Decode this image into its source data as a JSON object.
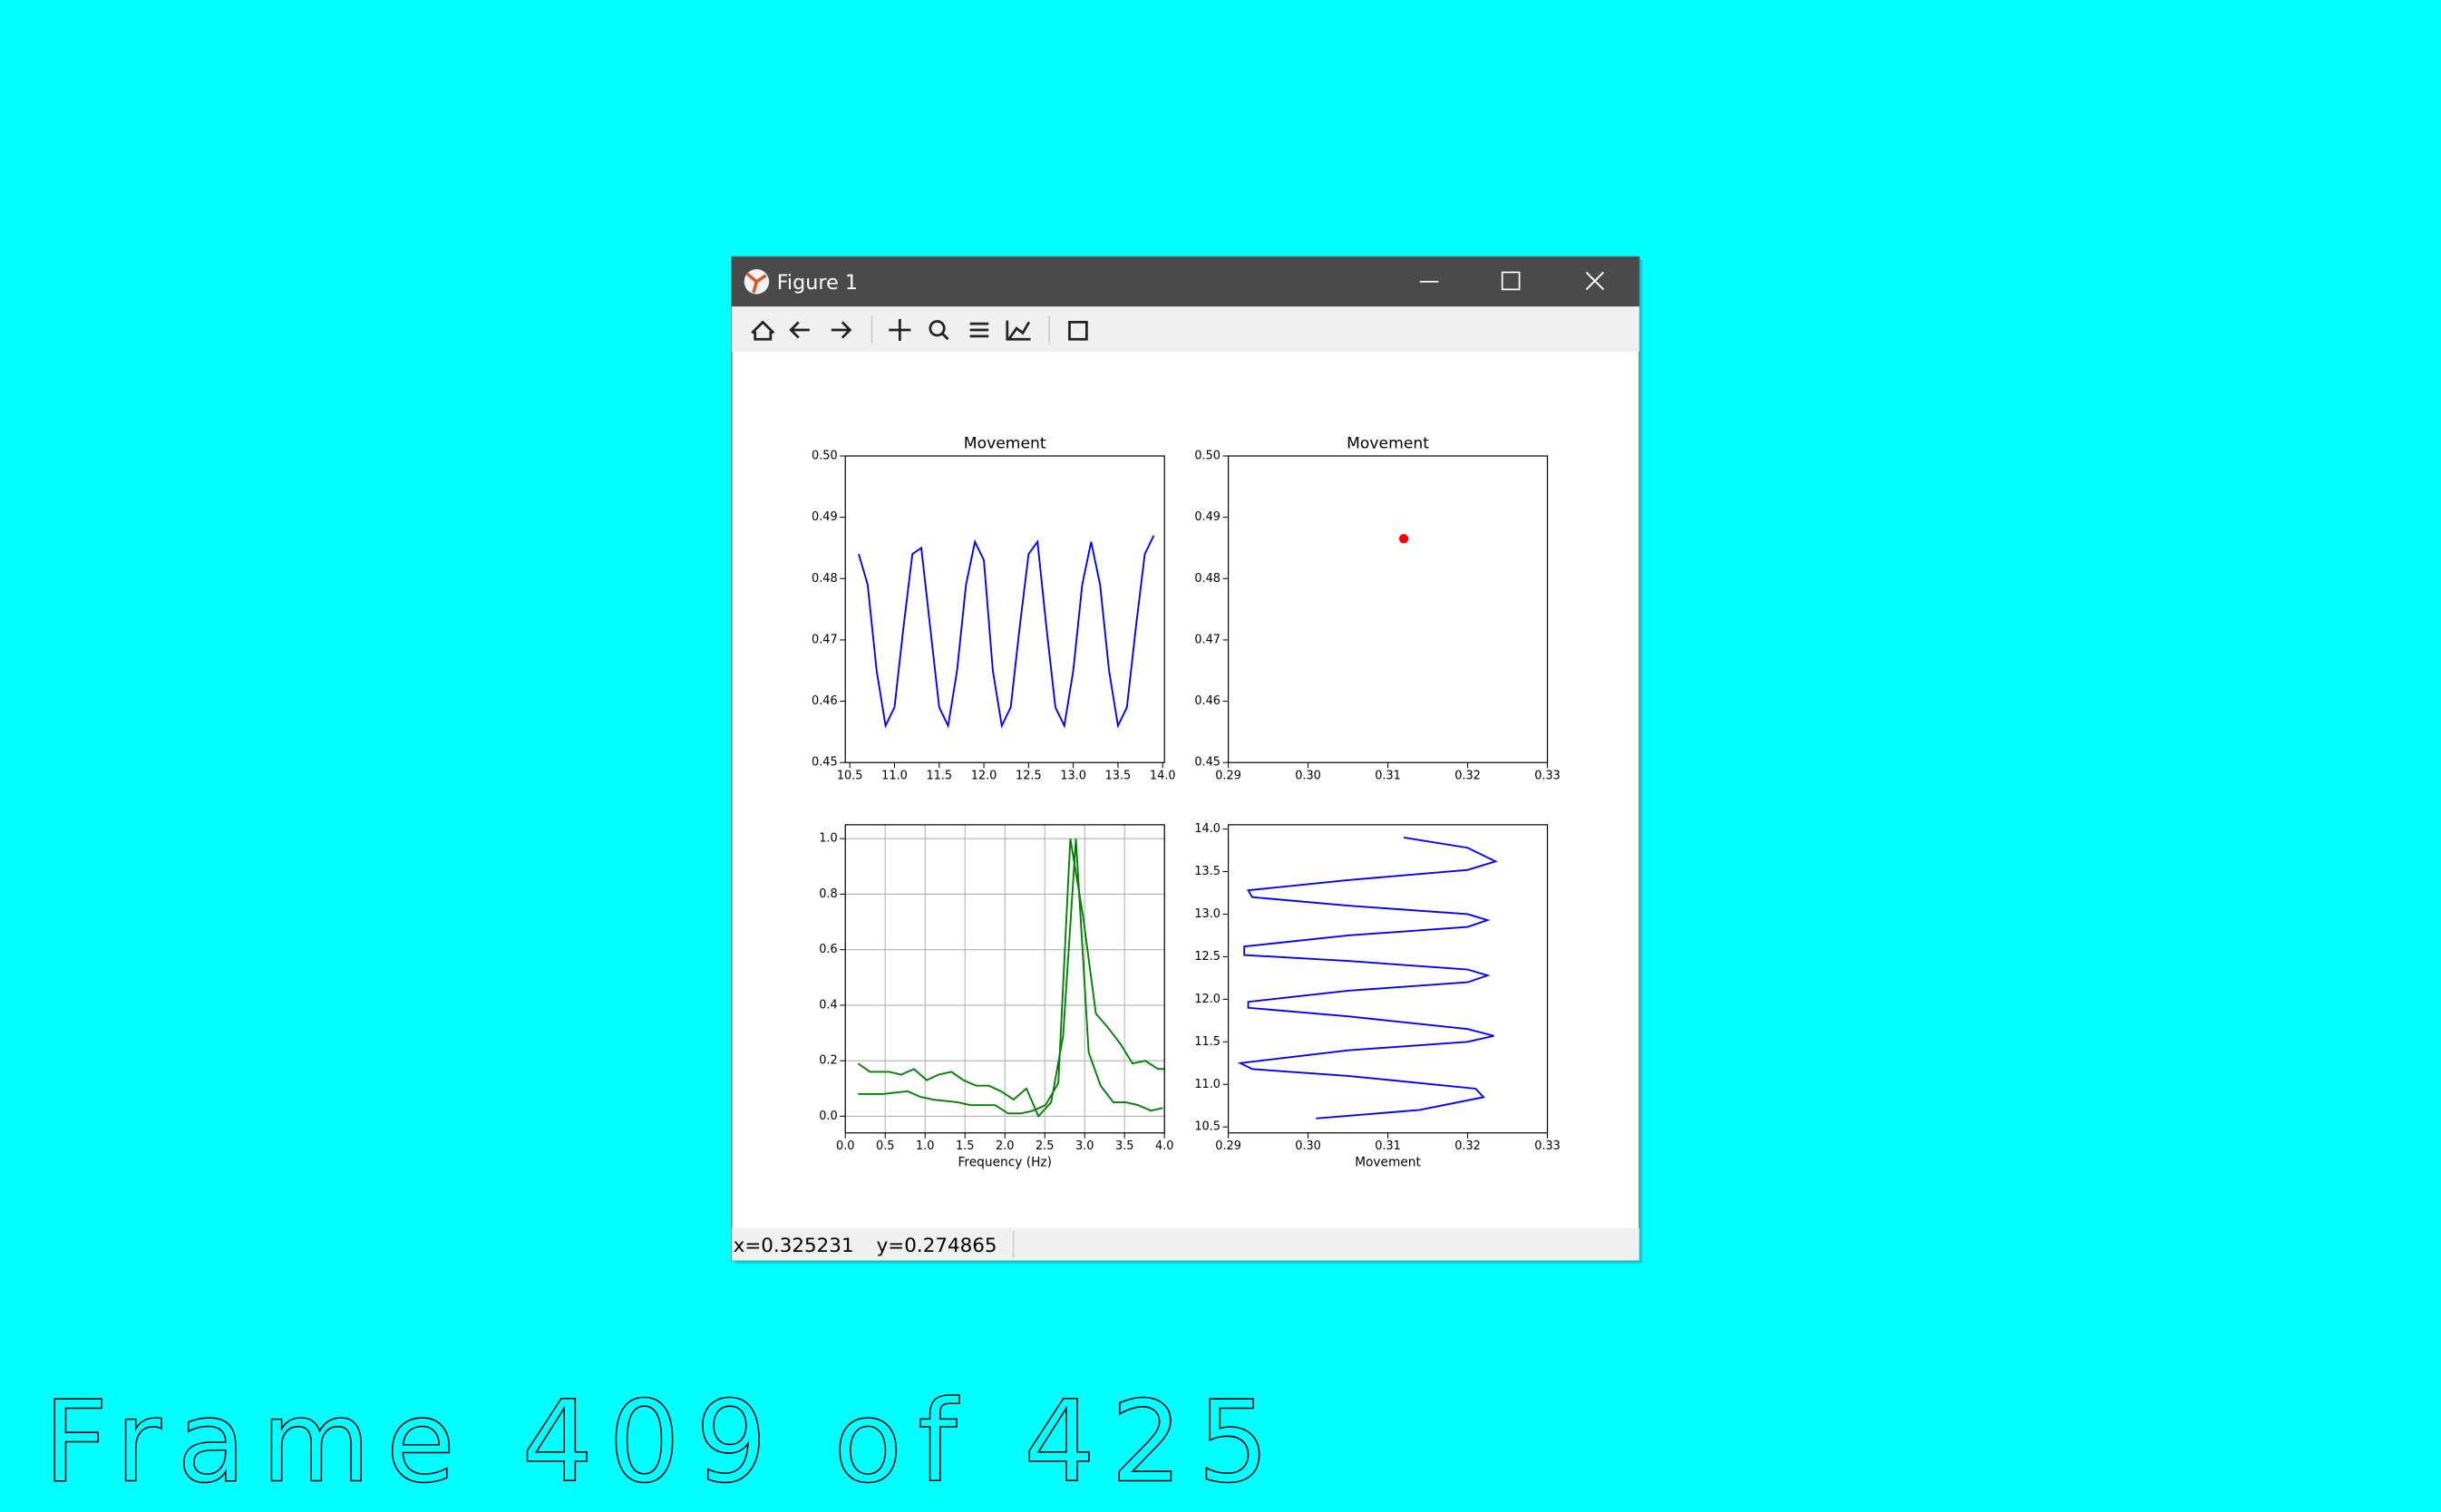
{
  "window": {
    "title": "Figure 1"
  },
  "status": {
    "x_text": "x=0.325231",
    "y_text": "y=0.274865"
  },
  "overlay": {
    "frame_text": "Frame 409 of 425"
  },
  "chart_data": [
    {
      "type": "line",
      "title": "Movement",
      "color": "#0000ff",
      "x": [
        10.6,
        10.7,
        10.8,
        10.9,
        11.0,
        11.1,
        11.2,
        11.3,
        11.4,
        11.5,
        11.6,
        11.7,
        11.8,
        11.9,
        12.0,
        12.1,
        12.2,
        12.3,
        12.4,
        12.5,
        12.6,
        12.7,
        12.8,
        12.9,
        13.0,
        13.1,
        13.2,
        13.3,
        13.4,
        13.5,
        13.6,
        13.7,
        13.8,
        13.9
      ],
      "values": [
        0.484,
        0.479,
        0.465,
        0.456,
        0.459,
        0.472,
        0.484,
        0.485,
        0.472,
        0.459,
        0.456,
        0.465,
        0.479,
        0.486,
        0.483,
        0.465,
        0.456,
        0.459,
        0.472,
        0.484,
        0.486,
        0.472,
        0.459,
        0.456,
        0.465,
        0.479,
        0.486,
        0.479,
        0.465,
        0.456,
        0.459,
        0.472,
        0.484,
        0.487
      ],
      "xlim": [
        10.45,
        14.02
      ],
      "ylim": [
        0.45,
        0.5
      ],
      "xticks": [
        10.5,
        {
          "value": 11.0,
          "label": "11.0"
        },
        11.5,
        {
          "value": 12.0,
          "label": "12.0"
        },
        12.5,
        {
          "value": 13.0,
          "label": "13.0"
        },
        13.5,
        {
          "value": 14.0,
          "label": "14.0"
        }
      ],
      "yticks": [
        0.45,
        0.46,
        0.47,
        0.48,
        0.49,
        {
          "value": 0.5,
          "label": "0.50"
        }
      ],
      "grid": false
    },
    {
      "type": "scatter",
      "title": "Movement",
      "color": "#ff0000",
      "x": [
        0.312
      ],
      "values": [
        0.4865
      ],
      "xlim": [
        0.29,
        0.33
      ],
      "ylim": [
        0.45,
        0.5
      ],
      "xticks": [
        0.29,
        {
          "value": 0.3,
          "label": "0.30"
        },
        0.31,
        0.32,
        0.33
      ],
      "yticks": [
        0.45,
        0.46,
        0.47,
        0.48,
        0.49,
        {
          "value": 0.5,
          "label": "0.50"
        }
      ],
      "grid": false
    },
    {
      "type": "line",
      "xlabel": "Frequency (Hz)",
      "series": [
        {
          "color": "#008000",
          "x": [
            0.16,
            0.31,
            0.55,
            0.7,
            0.86,
            1.02,
            1.17,
            1.33,
            1.48,
            1.64,
            1.8,
            1.95,
            2.11,
            2.27,
            2.42,
            2.58,
            2.73,
            2.89,
            3.05,
            3.2,
            3.36,
            3.52,
            3.67,
            3.83,
            3.98
          ],
          "values": [
            0.19,
            0.16,
            0.16,
            0.15,
            0.17,
            0.13,
            0.15,
            0.16,
            0.13,
            0.11,
            0.11,
            0.09,
            0.06,
            0.1,
            0.0,
            0.05,
            0.29,
            1.0,
            0.23,
            0.11,
            0.05,
            0.05,
            0.04,
            0.02,
            0.03
          ]
        },
        {
          "color": "#008000",
          "x": [
            0.16,
            0.47,
            0.78,
            0.94,
            1.1,
            1.41,
            1.57,
            1.88,
            2.04,
            2.2,
            2.35,
            2.51,
            2.67,
            2.82,
            2.98,
            3.14,
            3.29,
            3.45,
            3.6,
            3.76,
            3.92,
            4.0
          ],
          "values": [
            0.08,
            0.08,
            0.09,
            0.07,
            0.06,
            0.05,
            0.04,
            0.04,
            0.01,
            0.01,
            0.02,
            0.04,
            0.12,
            1.0,
            0.72,
            0.37,
            0.32,
            0.26,
            0.19,
            0.2,
            0.17,
            0.17
          ]
        }
      ],
      "xlim": [
        0,
        4
      ],
      "ylim": [
        -0.06,
        1.05
      ],
      "xticks": [
        {
          "value": 0,
          "label": "0.0"
        },
        0.5,
        {
          "value": 1,
          "label": "1.0"
        },
        1.5,
        {
          "value": 2,
          "label": "2.0"
        },
        2.5,
        {
          "value": 3,
          "label": "3.0"
        },
        3.5,
        {
          "value": 4,
          "label": "4.0"
        }
      ],
      "yticks": [
        {
          "value": 0,
          "label": "0.0"
        },
        0.2,
        0.4,
        0.6,
        0.8,
        {
          "value": 1,
          "label": "1.0"
        }
      ],
      "grid": true
    },
    {
      "type": "line",
      "xlabel": "Movement",
      "color": "#0000ff",
      "x": [
        0.301,
        0.314,
        0.322,
        0.321,
        0.305,
        0.293,
        0.2915,
        0.305,
        0.32,
        0.3233,
        0.32,
        0.305,
        0.2925,
        0.2925,
        0.305,
        0.32,
        0.3225,
        0.32,
        0.305,
        0.292,
        0.292,
        0.305,
        0.32,
        0.3225,
        0.32,
        0.305,
        0.293,
        0.2925,
        0.305,
        0.32,
        0.3235,
        0.32,
        0.312
      ],
      "values": [
        10.6,
        10.7,
        10.85,
        10.95,
        11.1,
        11.18,
        11.25,
        11.4,
        11.5,
        11.57,
        11.65,
        11.8,
        11.9,
        11.97,
        12.1,
        12.2,
        12.28,
        12.35,
        12.45,
        12.52,
        12.62,
        12.75,
        12.85,
        12.93,
        13.0,
        13.1,
        13.2,
        13.28,
        13.4,
        13.52,
        13.62,
        13.78,
        13.9
      ],
      "xlim": [
        0.29,
        0.33
      ],
      "ylim": [
        10.43,
        14.05
      ],
      "xticks": [
        0.29,
        {
          "value": 0.3,
          "label": "0.30"
        },
        0.31,
        0.32,
        0.33
      ],
      "yticks": [
        10.5,
        {
          "value": 11.0,
          "label": "11.0"
        },
        11.5,
        {
          "value": 12.0,
          "label": "12.0"
        },
        12.5,
        {
          "value": 13.0,
          "label": "13.0"
        },
        13.5,
        {
          "value": 14.0,
          "label": "14.0"
        }
      ],
      "grid": false
    }
  ]
}
